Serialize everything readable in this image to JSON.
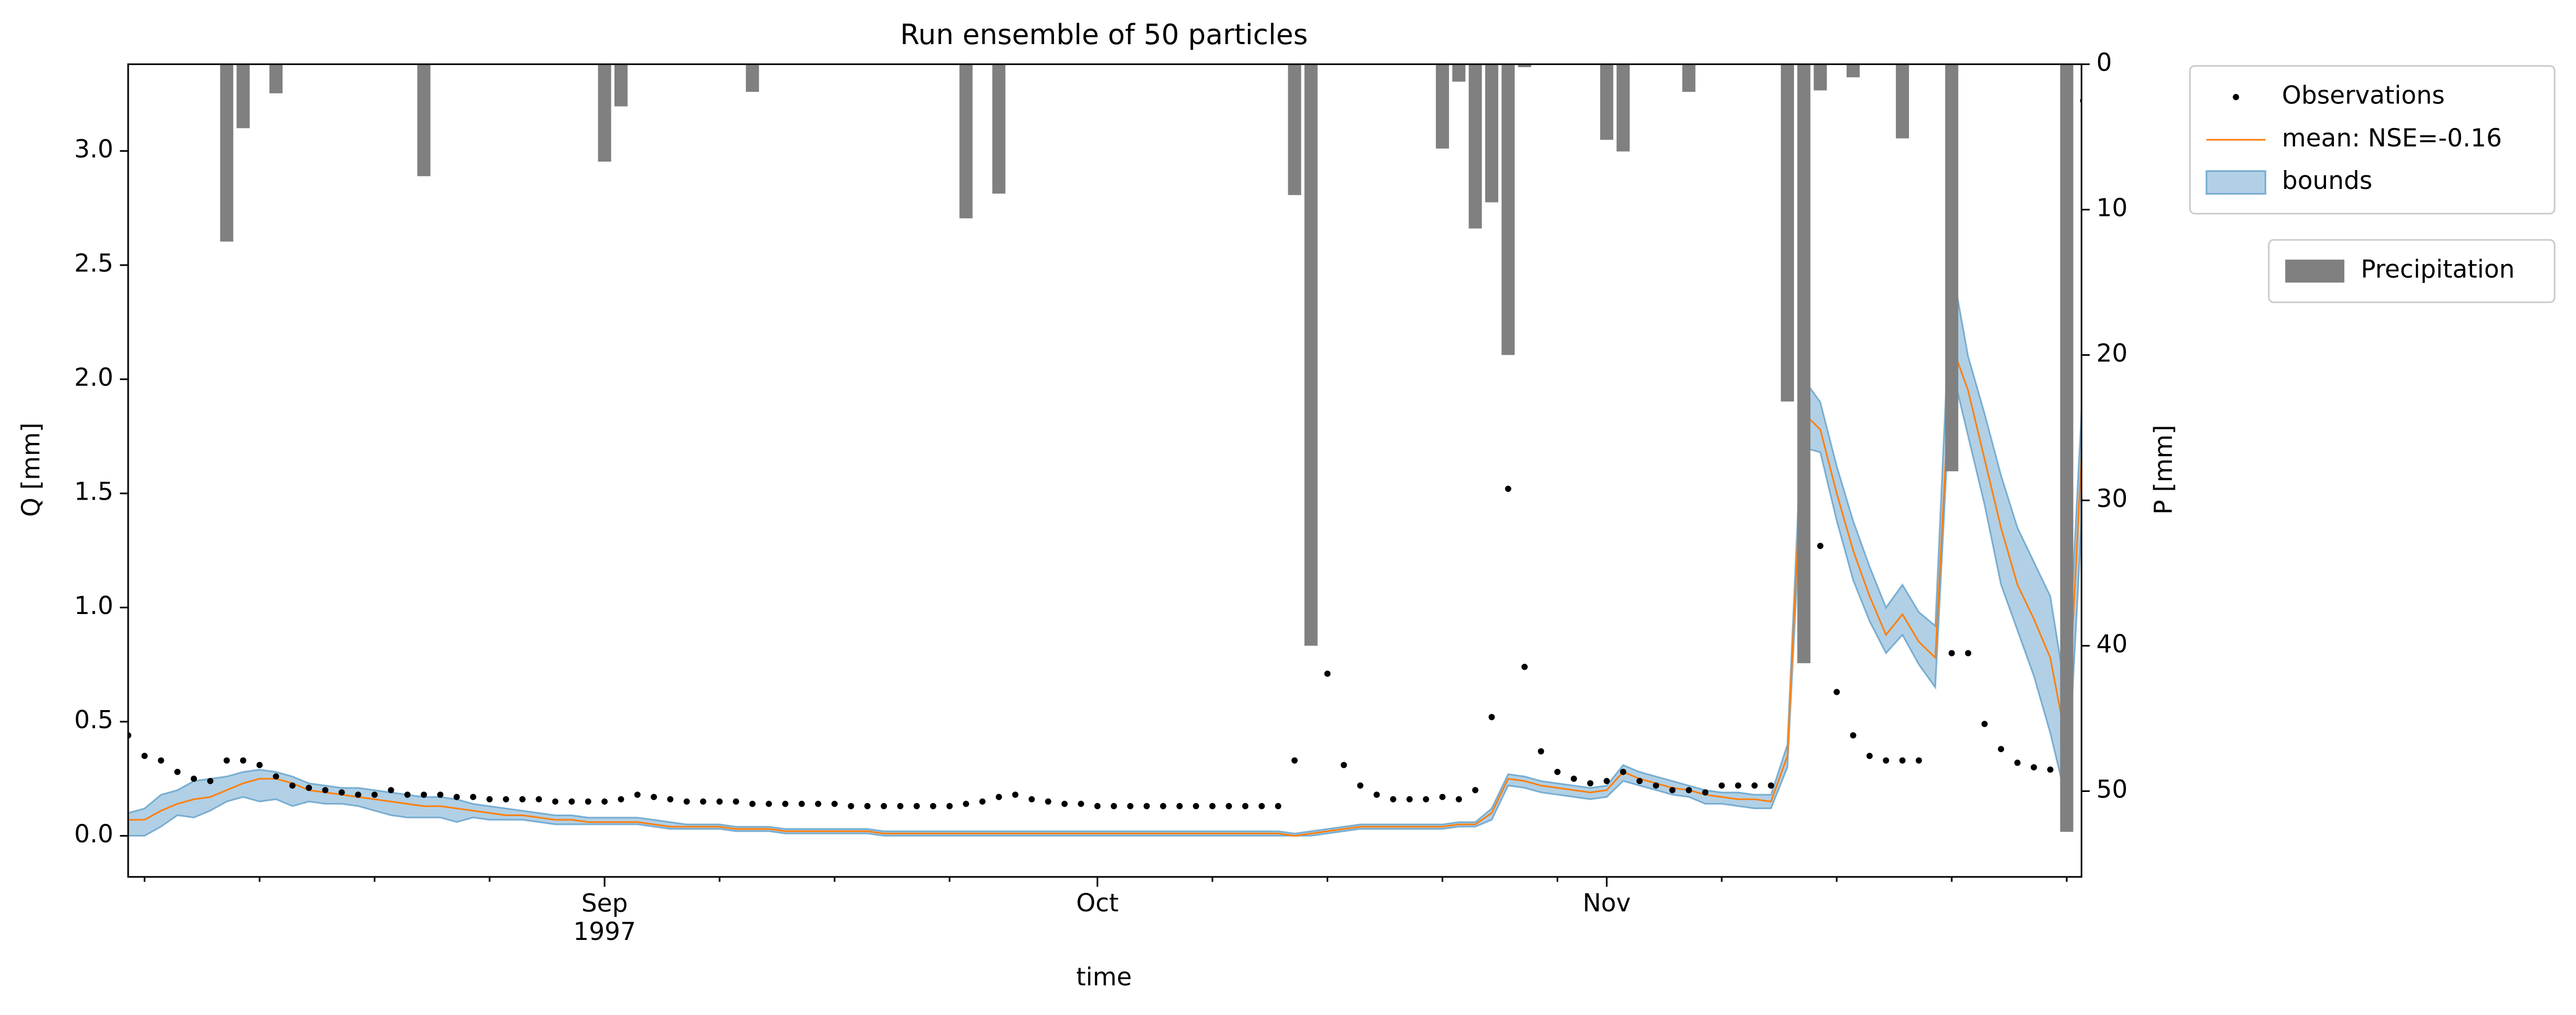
{
  "chart_data": {
    "type": "line",
    "title": "Run ensemble of 50 particles",
    "xlabel": "time",
    "ylabel": "Q [mm]",
    "y2label": "P [mm]",
    "x": [
      215,
      216,
      217,
      218,
      219,
      220,
      221,
      222,
      223,
      224,
      225,
      226,
      227,
      228,
      229,
      230,
      231,
      232,
      233,
      234,
      235,
      236,
      237,
      238,
      239,
      240,
      241,
      242,
      243,
      244,
      245,
      246,
      247,
      248,
      249,
      250,
      251,
      252,
      253,
      254,
      255,
      256,
      257,
      258,
      259,
      260,
      261,
      262,
      263,
      264,
      265,
      266,
      267,
      268,
      269,
      270,
      271,
      272,
      273,
      274,
      275,
      276,
      277,
      278,
      279,
      280,
      281,
      282,
      283,
      284,
      285,
      286,
      287,
      288,
      289,
      290,
      291,
      292,
      293,
      294,
      295,
      296,
      297,
      298,
      299,
      300,
      301,
      302,
      303,
      304,
      305,
      306,
      307,
      308,
      309,
      310,
      311,
      312,
      313,
      314,
      315,
      316,
      317,
      318,
      319,
      320,
      321,
      322,
      323,
      324,
      325,
      326,
      327,
      328,
      329,
      330,
      331,
      332,
      333,
      334
    ],
    "xlim": [
      215,
      333.9
    ],
    "xticks": [
      {
        "value": 244,
        "label": "Sep\n1997"
      },
      {
        "value": 274,
        "label": "Oct"
      },
      {
        "value": 305,
        "label": "Nov"
      }
    ],
    "xminorticks": [
      216,
      223,
      230,
      237,
      251,
      258,
      265,
      281,
      288,
      295,
      302,
      312,
      319,
      326,
      333
    ],
    "ylim": [
      -0.18,
      3.38
    ],
    "yticks": [
      {
        "value": 0,
        "label": "0.0"
      },
      0.5,
      {
        "value": 1,
        "label": "1.0"
      },
      1.5,
      {
        "value": 2,
        "label": "2.0"
      },
      2.5,
      {
        "value": 3,
        "label": "3.0"
      }
    ],
    "y2lim": [
      55.9,
      0
    ],
    "y2ticks": [
      0,
      10,
      20,
      30,
      40,
      50
    ],
    "legend": "outside upper right",
    "series": [
      {
        "name": "Observations",
        "type": "scatter",
        "color": "#000000",
        "values": [
          0.44,
          0.35,
          0.33,
          0.28,
          0.25,
          0.24,
          0.33,
          0.33,
          0.31,
          0.26,
          0.22,
          0.21,
          0.2,
          0.19,
          0.18,
          0.18,
          0.2,
          0.18,
          0.18,
          0.18,
          0.17,
          0.17,
          0.16,
          0.16,
          0.16,
          0.16,
          0.15,
          0.15,
          0.15,
          0.15,
          0.16,
          0.18,
          0.17,
          0.16,
          0.15,
          0.15,
          0.15,
          0.15,
          0.14,
          0.14,
          0.14,
          0.14,
          0.14,
          0.14,
          0.13,
          0.13,
          0.13,
          0.13,
          0.13,
          0.13,
          0.13,
          0.14,
          0.15,
          0.17,
          0.18,
          0.16,
          0.15,
          0.14,
          0.14,
          0.13,
          0.13,
          0.13,
          0.13,
          0.13,
          0.13,
          0.13,
          0.13,
          0.13,
          0.13,
          0.13,
          0.13,
          0.33,
          null,
          0.71,
          0.31,
          0.22,
          0.18,
          0.16,
          0.16,
          0.16,
          0.17,
          0.16,
          0.2,
          0.52,
          1.52,
          0.74,
          0.37,
          0.28,
          0.25,
          0.23,
          0.24,
          0.28,
          0.24,
          0.22,
          0.2,
          0.2,
          0.19,
          0.22,
          0.22,
          0.22,
          0.22,
          null,
          null,
          1.27,
          0.63,
          0.44,
          0.35,
          0.33,
          0.33,
          0.33,
          null,
          0.8,
          0.8,
          0.49,
          0.38,
          0.32,
          0.3,
          0.29,
          null,
          3.22
        ]
      },
      {
        "name": "mean: NSE=-0.16",
        "type": "line",
        "color": "#ff7f0e",
        "values": [
          0.07,
          0.07,
          0.11,
          0.14,
          0.16,
          0.17,
          0.2,
          0.23,
          0.25,
          0.25,
          0.23,
          0.2,
          0.19,
          0.18,
          0.17,
          0.16,
          0.15,
          0.14,
          0.13,
          0.13,
          0.12,
          0.11,
          0.1,
          0.09,
          0.09,
          0.08,
          0.07,
          0.07,
          0.06,
          0.06,
          0.06,
          0.06,
          0.05,
          0.04,
          0.04,
          0.04,
          0.04,
          0.03,
          0.03,
          0.03,
          0.02,
          0.02,
          0.02,
          0.02,
          0.02,
          0.02,
          0.01,
          0.01,
          0.01,
          0.01,
          0.01,
          0.01,
          0.01,
          0.01,
          0.01,
          0.01,
          0.01,
          0.01,
          0.01,
          0.01,
          0.01,
          0.01,
          0.01,
          0.01,
          0.01,
          0.01,
          0.01,
          0.01,
          0.01,
          0.01,
          0.01,
          0.0,
          0.01,
          0.02,
          0.03,
          0.04,
          0.04,
          0.04,
          0.04,
          0.04,
          0.04,
          0.05,
          0.05,
          0.1,
          0.25,
          0.24,
          0.22,
          0.21,
          0.2,
          0.19,
          0.2,
          0.28,
          0.25,
          0.23,
          0.21,
          0.2,
          0.18,
          0.17,
          0.16,
          0.16,
          0.15,
          0.35,
          1.85,
          1.78,
          1.5,
          1.25,
          1.05,
          0.88,
          0.97,
          0.85,
          0.78,
          2.15,
          1.95,
          1.65,
          1.35,
          1.1,
          0.95,
          0.78,
          0.4,
          1.8
        ]
      },
      {
        "name": "bounds",
        "type": "band",
        "color": "#1f77b4",
        "lower": [
          0.0,
          0.0,
          0.04,
          0.09,
          0.08,
          0.11,
          0.15,
          0.17,
          0.15,
          0.16,
          0.13,
          0.15,
          0.14,
          0.14,
          0.13,
          0.11,
          0.09,
          0.08,
          0.08,
          0.08,
          0.06,
          0.08,
          0.07,
          0.07,
          0.07,
          0.06,
          0.05,
          0.05,
          0.05,
          0.05,
          0.05,
          0.05,
          0.04,
          0.03,
          0.03,
          0.03,
          0.03,
          0.02,
          0.02,
          0.02,
          0.01,
          0.01,
          0.01,
          0.01,
          0.01,
          0.01,
          0.0,
          0.0,
          0.0,
          0.0,
          0.0,
          0.0,
          0.0,
          0.0,
          0.0,
          0.0,
          0.0,
          0.0,
          0.0,
          0.0,
          0.0,
          0.0,
          0.0,
          0.0,
          0.0,
          0.0,
          0.0,
          0.0,
          0.0,
          0.0,
          0.0,
          0.0,
          0.0,
          0.01,
          0.02,
          0.03,
          0.03,
          0.03,
          0.03,
          0.03,
          0.03,
          0.04,
          0.04,
          0.07,
          0.22,
          0.21,
          0.19,
          0.18,
          0.17,
          0.16,
          0.17,
          0.24,
          0.22,
          0.2,
          0.18,
          0.17,
          0.14,
          0.14,
          0.13,
          0.12,
          0.12,
          0.3,
          1.7,
          1.68,
          1.38,
          1.12,
          0.94,
          0.8,
          0.88,
          0.75,
          0.65,
          2.05,
          1.75,
          1.45,
          1.1,
          0.9,
          0.7,
          0.45,
          0.15,
          1.5
        ],
        "upper": [
          0.1,
          0.12,
          0.18,
          0.2,
          0.24,
          0.25,
          0.26,
          0.28,
          0.29,
          0.28,
          0.26,
          0.23,
          0.22,
          0.21,
          0.21,
          0.2,
          0.19,
          0.18,
          0.17,
          0.17,
          0.16,
          0.14,
          0.13,
          0.12,
          0.11,
          0.1,
          0.09,
          0.09,
          0.08,
          0.08,
          0.08,
          0.08,
          0.07,
          0.06,
          0.05,
          0.05,
          0.05,
          0.04,
          0.04,
          0.04,
          0.03,
          0.03,
          0.03,
          0.03,
          0.03,
          0.03,
          0.02,
          0.02,
          0.02,
          0.02,
          0.02,
          0.02,
          0.02,
          0.02,
          0.02,
          0.02,
          0.02,
          0.02,
          0.02,
          0.02,
          0.02,
          0.02,
          0.02,
          0.02,
          0.02,
          0.02,
          0.02,
          0.02,
          0.02,
          0.02,
          0.02,
          0.01,
          0.02,
          0.03,
          0.04,
          0.05,
          0.05,
          0.05,
          0.05,
          0.05,
          0.05,
          0.06,
          0.06,
          0.12,
          0.27,
          0.26,
          0.24,
          0.23,
          0.22,
          0.21,
          0.22,
          0.31,
          0.28,
          0.26,
          0.24,
          0.22,
          0.2,
          0.19,
          0.19,
          0.18,
          0.18,
          0.4,
          2.0,
          1.9,
          1.62,
          1.38,
          1.18,
          1.0,
          1.1,
          0.98,
          0.92,
          2.5,
          2.1,
          1.85,
          1.58,
          1.35,
          1.2,
          1.05,
          0.6,
          2.0
        ]
      },
      {
        "name": "Precipitation",
        "type": "bar",
        "axis": "y2",
        "color": "#808080",
        "values": [
          0,
          0,
          0,
          0,
          0,
          0,
          12.2,
          4.4,
          0,
          2.0,
          0,
          0,
          0,
          0,
          0,
          0,
          0,
          0,
          7.7,
          0,
          0,
          0,
          0,
          0,
          0,
          0,
          0,
          0,
          0,
          6.7,
          2.9,
          0,
          0,
          0,
          0,
          0,
          0,
          0,
          1.9,
          0,
          0,
          0,
          0,
          0,
          0,
          0,
          0,
          0,
          0,
          0,
          0,
          10.6,
          0,
          8.9,
          0,
          0,
          0,
          0,
          0,
          0,
          0,
          0,
          0,
          0,
          0,
          0,
          0,
          0,
          0,
          0,
          0,
          9.0,
          40.0,
          0,
          0,
          0,
          0,
          0,
          0,
          0,
          5.8,
          1.2,
          11.3,
          9.5,
          20.0,
          0.2,
          0,
          0,
          0,
          0,
          5.2,
          6.0,
          0,
          0,
          0,
          1.9,
          0,
          0,
          0,
          0,
          0,
          23.2,
          41.2,
          1.8,
          0,
          0.9,
          0,
          0,
          5.1,
          0,
          0,
          28.0,
          0,
          0,
          0,
          0,
          0,
          0,
          52.8,
          0
        ]
      }
    ]
  }
}
